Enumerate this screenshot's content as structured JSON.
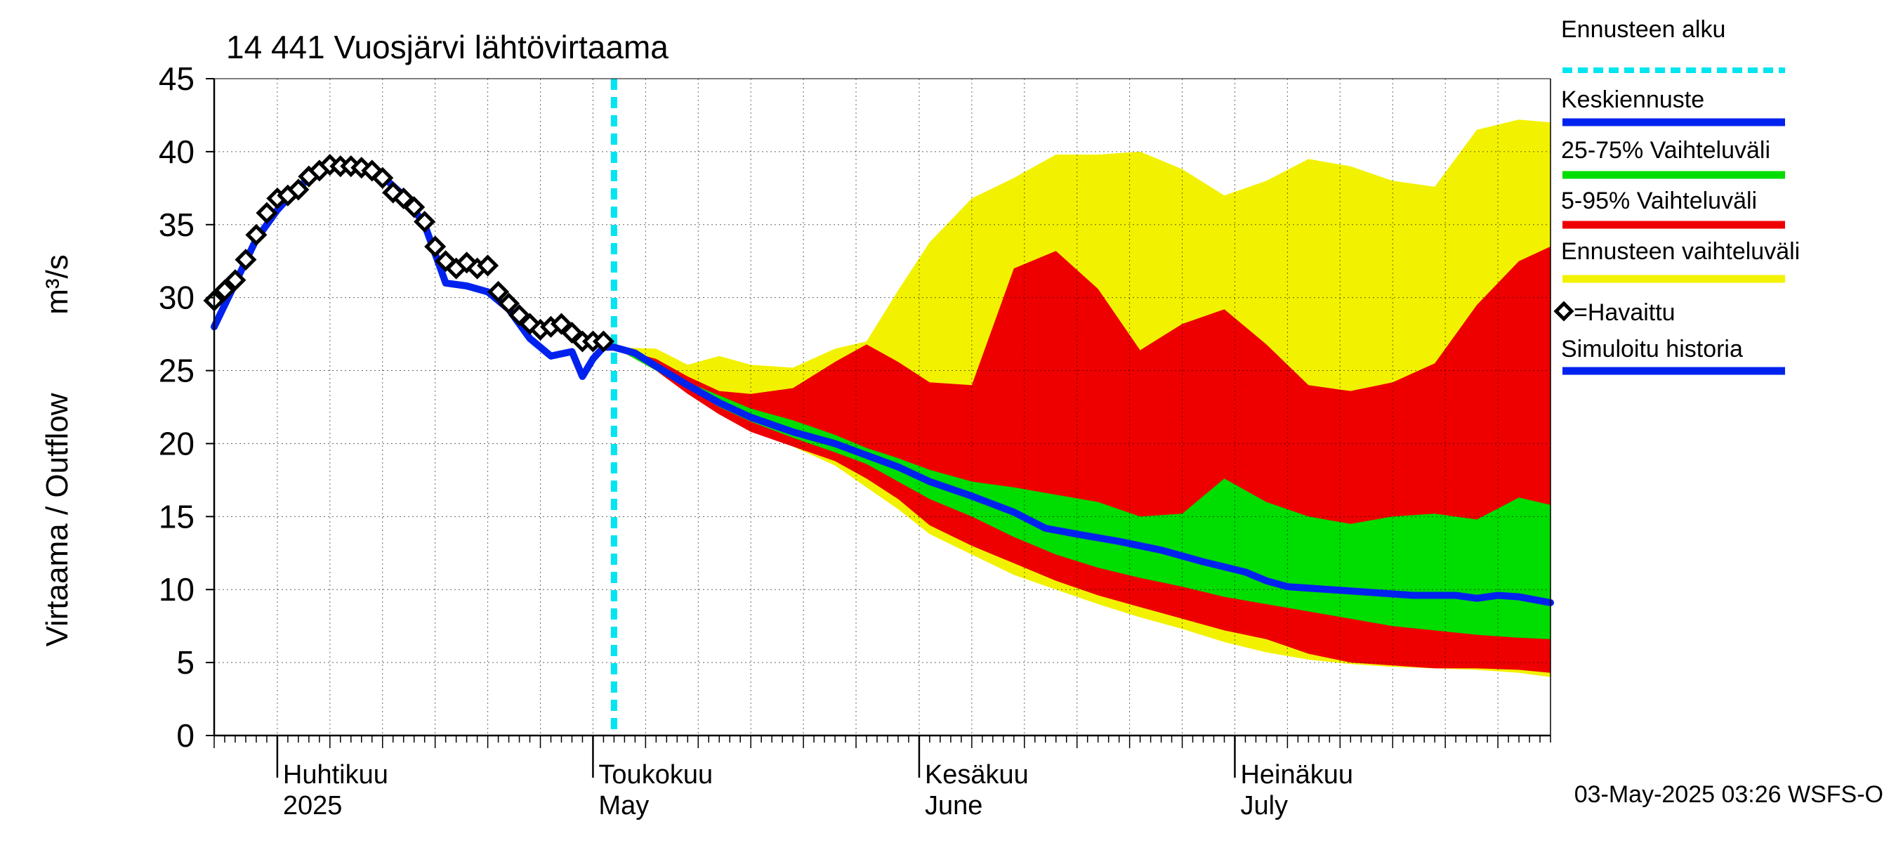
{
  "chart_data": {
    "type": "area",
    "title": "14 441 Vuosjärvi lähtövirtaama",
    "ylabel": "Virtaama / Outflow",
    "yunit": "m³/s",
    "ylim": [
      0,
      45
    ],
    "yticks": [
      0,
      5,
      10,
      15,
      20,
      25,
      30,
      35,
      40,
      45
    ],
    "xlim": [
      "2025-03-26",
      "2025-07-31"
    ],
    "grid": true,
    "legend_position": "right",
    "month_labels": [
      {
        "fi": "Huhtikuu",
        "en": "2025",
        "date": "2025-04-01"
      },
      {
        "fi": "Toukokuu",
        "en": "May",
        "date": "2025-05-01"
      },
      {
        "fi": "Kesäkuu",
        "en": "June",
        "date": "2025-06-01"
      },
      {
        "fi": "Heinäkuu",
        "en": "July",
        "date": "2025-07-01"
      }
    ],
    "forecast_start": "2025-05-03",
    "legend": [
      {
        "label": "Ennusteen alku",
        "color": "#00e5f0",
        "style": "dashed"
      },
      {
        "label": "Keskiennuste",
        "color": "#0022ee",
        "style": "line"
      },
      {
        "label": "25-75% Vaihteluväli",
        "color": "#00dd00",
        "style": "line"
      },
      {
        "label": "5-95% Vaihteluväli",
        "color": "#ee0000",
        "style": "line"
      },
      {
        "label": "Ennusteen vaihteluväli",
        "color": "#f2f200",
        "style": "line"
      },
      {
        "label": "=Havaittu",
        "color": "#000000",
        "style": "diamond"
      },
      {
        "label": "Simuloitu historia",
        "color": "#0022ee",
        "style": "line"
      }
    ],
    "series": [
      {
        "name": "Ennusteen vaihteluväli",
        "kind": "band",
        "color": "#f2f200",
        "x": [
          "2025-05-03",
          "2025-05-07",
          "2025-05-10",
          "2025-05-13",
          "2025-05-16",
          "2025-05-20",
          "2025-05-24",
          "2025-05-27",
          "2025-05-30",
          "2025-06-02",
          "2025-06-06",
          "2025-06-10",
          "2025-06-14",
          "2025-06-18",
          "2025-06-22",
          "2025-06-26",
          "2025-06-30",
          "2025-07-04",
          "2025-07-08",
          "2025-07-12",
          "2025-07-16",
          "2025-07-20",
          "2025-07-24",
          "2025-07-28",
          "2025-07-31"
        ],
        "low": [
          26.6,
          25.2,
          23.8,
          22.4,
          21.0,
          19.8,
          18.5,
          17.0,
          15.5,
          13.8,
          12.4,
          11.0,
          10.0,
          9.0,
          8.1,
          7.3,
          6.4,
          5.7,
          5.2,
          4.9,
          4.7,
          4.6,
          4.5,
          4.3,
          4.0
        ],
        "high": [
          26.6,
          26.5,
          25.4,
          26.0,
          25.4,
          25.2,
          26.5,
          27.0,
          30.5,
          33.8,
          36.8,
          38.2,
          39.8,
          39.8,
          40.0,
          38.8,
          37.0,
          38.0,
          39.5,
          39.0,
          38.0,
          37.6,
          41.5,
          42.2,
          42.0
        ]
      },
      {
        "name": "5-95% Vaihteluväli",
        "kind": "band",
        "color": "#ee0000",
        "x": [
          "2025-05-03",
          "2025-05-07",
          "2025-05-10",
          "2025-05-13",
          "2025-05-16",
          "2025-05-20",
          "2025-05-24",
          "2025-05-27",
          "2025-05-30",
          "2025-06-02",
          "2025-06-06",
          "2025-06-10",
          "2025-06-14",
          "2025-06-18",
          "2025-06-22",
          "2025-06-26",
          "2025-06-30",
          "2025-07-04",
          "2025-07-08",
          "2025-07-12",
          "2025-07-16",
          "2025-07-20",
          "2025-07-24",
          "2025-07-28",
          "2025-07-31"
        ],
        "low": [
          26.6,
          25.0,
          23.4,
          22.0,
          20.8,
          19.8,
          18.8,
          17.6,
          16.2,
          14.4,
          13.0,
          11.8,
          10.6,
          9.6,
          8.8,
          8.0,
          7.2,
          6.6,
          5.6,
          5.0,
          4.8,
          4.6,
          4.6,
          4.5,
          4.3
        ],
        "high": [
          26.6,
          25.8,
          24.6,
          23.6,
          23.4,
          23.8,
          25.6,
          26.8,
          25.6,
          24.2,
          24.0,
          32.0,
          33.2,
          30.6,
          26.4,
          28.2,
          29.2,
          26.8,
          24.0,
          23.6,
          24.2,
          25.5,
          29.5,
          32.5,
          33.5
        ]
      },
      {
        "name": "25-75% Vaihteluväli",
        "kind": "band",
        "color": "#00dd00",
        "x": [
          "2025-05-03",
          "2025-05-07",
          "2025-05-10",
          "2025-05-13",
          "2025-05-16",
          "2025-05-20",
          "2025-05-24",
          "2025-05-27",
          "2025-05-30",
          "2025-06-02",
          "2025-06-06",
          "2025-06-10",
          "2025-06-14",
          "2025-06-18",
          "2025-06-22",
          "2025-06-26",
          "2025-06-30",
          "2025-07-04",
          "2025-07-08",
          "2025-07-12",
          "2025-07-16",
          "2025-07-20",
          "2025-07-24",
          "2025-07-28",
          "2025-07-31"
        ],
        "low": [
          26.6,
          25.0,
          23.8,
          22.5,
          21.5,
          20.4,
          19.4,
          18.6,
          17.4,
          16.2,
          15.0,
          13.6,
          12.4,
          11.5,
          10.8,
          10.2,
          9.5,
          9.0,
          8.5,
          8.0,
          7.5,
          7.2,
          6.9,
          6.7,
          6.6
        ],
        "high": [
          26.6,
          25.6,
          24.2,
          23.3,
          22.4,
          21.6,
          20.6,
          19.7,
          19.0,
          18.2,
          17.4,
          17.0,
          16.5,
          16.0,
          15.0,
          15.2,
          17.6,
          16.0,
          15.0,
          14.5,
          15.0,
          15.2,
          14.8,
          16.3,
          15.8
        ]
      },
      {
        "name": "Keskiennuste",
        "kind": "line",
        "color": "#0022ee",
        "x": [
          "2025-05-03",
          "2025-05-05",
          "2025-05-07",
          "2025-05-10",
          "2025-05-13",
          "2025-05-16",
          "2025-05-20",
          "2025-05-24",
          "2025-05-27",
          "2025-05-30",
          "2025-06-02",
          "2025-06-06",
          "2025-06-10",
          "2025-06-13",
          "2025-06-16",
          "2025-06-20",
          "2025-06-24",
          "2025-06-28",
          "2025-07-02",
          "2025-07-04",
          "2025-07-06",
          "2025-07-10",
          "2025-07-14",
          "2025-07-18",
          "2025-07-22",
          "2025-07-24",
          "2025-07-26",
          "2025-07-28",
          "2025-07-31"
        ],
        "values": [
          26.6,
          26.2,
          25.3,
          24.0,
          22.8,
          21.8,
          20.8,
          20.0,
          19.2,
          18.4,
          17.4,
          16.4,
          15.3,
          14.2,
          13.8,
          13.3,
          12.7,
          11.9,
          11.2,
          10.6,
          10.2,
          10.0,
          9.8,
          9.6,
          9.6,
          9.4,
          9.6,
          9.5,
          9.1
        ]
      },
      {
        "name": "Simuloitu historia",
        "kind": "line",
        "color": "#0022ee",
        "x": [
          "2025-03-26",
          "2025-03-28",
          "2025-03-30",
          "2025-04-01",
          "2025-04-03",
          "2025-04-05",
          "2025-04-07",
          "2025-04-09",
          "2025-04-11",
          "2025-04-13",
          "2025-04-15",
          "2025-04-17",
          "2025-04-19",
          "2025-04-21",
          "2025-04-23",
          "2025-04-25",
          "2025-04-27",
          "2025-04-29",
          "2025-04-30",
          "2025-05-01",
          "2025-05-02",
          "2025-05-03"
        ],
        "values": [
          28.0,
          31.0,
          34.0,
          36.0,
          37.6,
          38.6,
          39.0,
          39.0,
          38.3,
          37.0,
          35.0,
          31.0,
          30.8,
          30.4,
          29.2,
          27.2,
          26.0,
          26.3,
          24.6,
          25.8,
          26.6,
          26.6
        ]
      },
      {
        "name": "=Havaittu",
        "kind": "scatter",
        "color": "#000000",
        "x": [
          "2025-03-26",
          "2025-03-27",
          "2025-03-28",
          "2025-03-29",
          "2025-03-30",
          "2025-03-31",
          "2025-04-01",
          "2025-04-02",
          "2025-04-03",
          "2025-04-04",
          "2025-04-05",
          "2025-04-06",
          "2025-04-07",
          "2025-04-08",
          "2025-04-09",
          "2025-04-10",
          "2025-04-11",
          "2025-04-12",
          "2025-04-13",
          "2025-04-14",
          "2025-04-15",
          "2025-04-16",
          "2025-04-17",
          "2025-04-18",
          "2025-04-19",
          "2025-04-20",
          "2025-04-21",
          "2025-04-22",
          "2025-04-23",
          "2025-04-24",
          "2025-04-25",
          "2025-04-26",
          "2025-04-27",
          "2025-04-28",
          "2025-04-29",
          "2025-04-30",
          "2025-05-01",
          "2025-05-02"
        ],
        "values": [
          29.8,
          30.5,
          31.2,
          32.6,
          34.3,
          35.8,
          36.8,
          37.0,
          37.4,
          38.3,
          38.7,
          39.1,
          39.0,
          39.0,
          38.9,
          38.7,
          38.2,
          37.2,
          36.8,
          36.2,
          35.2,
          33.5,
          32.5,
          32.0,
          32.4,
          32.0,
          32.2,
          30.4,
          29.6,
          28.8,
          28.2,
          27.8,
          28.0,
          28.2,
          27.6,
          27.0,
          27.0,
          27.0
        ]
      }
    ]
  },
  "footer": {
    "timestamp": "03-May-2025 03:26 WSFS-O"
  }
}
